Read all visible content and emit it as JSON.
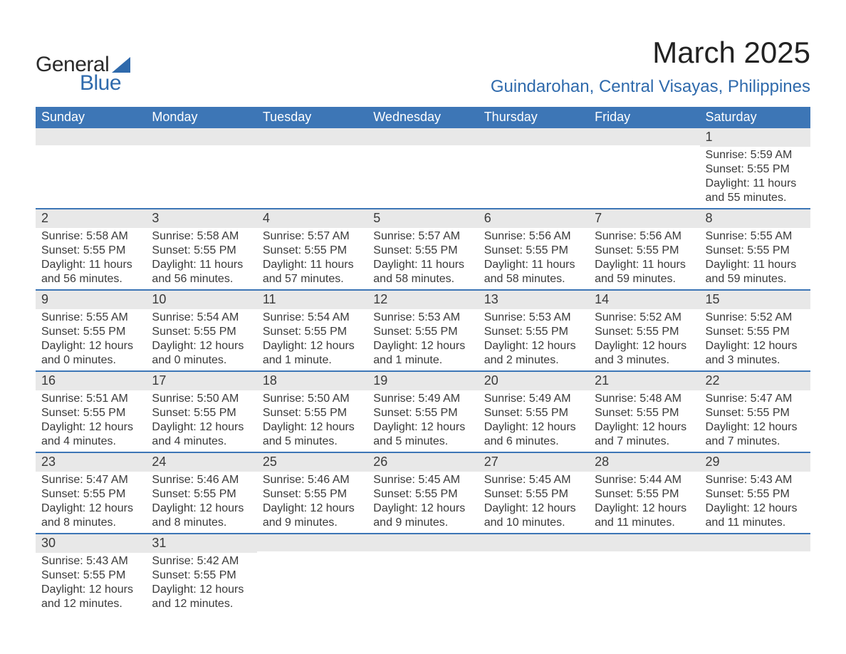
{
  "logo": {
    "word1": "General",
    "word2": "Blue"
  },
  "title": "March 2025",
  "location": "Guindarohan, Central Visayas, Philippines",
  "colors": {
    "header_bg": "#3d76b6",
    "header_text": "#ffffff",
    "daynum_bg": "#e8e8e8",
    "week_border": "#3d76b6",
    "logo_blue": "#2f6aac",
    "body_text": "#3a3a3a",
    "page_bg": "#ffffff"
  },
  "typography": {
    "title_fontsize_pt": 32,
    "location_fontsize_pt": 18,
    "header_fontsize_pt": 14,
    "daynum_fontsize_pt": 14,
    "body_fontsize_pt": 12,
    "font_family": "Arial"
  },
  "calendar": {
    "columns": [
      "Sunday",
      "Monday",
      "Tuesday",
      "Wednesday",
      "Thursday",
      "Friday",
      "Saturday"
    ],
    "weeks": [
      [
        null,
        null,
        null,
        null,
        null,
        null,
        {
          "n": "1",
          "sunrise": "Sunrise: 5:59 AM",
          "sunset": "Sunset: 5:55 PM",
          "daylight": "Daylight: 11 hours and 55 minutes."
        }
      ],
      [
        {
          "n": "2",
          "sunrise": "Sunrise: 5:58 AM",
          "sunset": "Sunset: 5:55 PM",
          "daylight": "Daylight: 11 hours and 56 minutes."
        },
        {
          "n": "3",
          "sunrise": "Sunrise: 5:58 AM",
          "sunset": "Sunset: 5:55 PM",
          "daylight": "Daylight: 11 hours and 56 minutes."
        },
        {
          "n": "4",
          "sunrise": "Sunrise: 5:57 AM",
          "sunset": "Sunset: 5:55 PM",
          "daylight": "Daylight: 11 hours and 57 minutes."
        },
        {
          "n": "5",
          "sunrise": "Sunrise: 5:57 AM",
          "sunset": "Sunset: 5:55 PM",
          "daylight": "Daylight: 11 hours and 58 minutes."
        },
        {
          "n": "6",
          "sunrise": "Sunrise: 5:56 AM",
          "sunset": "Sunset: 5:55 PM",
          "daylight": "Daylight: 11 hours and 58 minutes."
        },
        {
          "n": "7",
          "sunrise": "Sunrise: 5:56 AM",
          "sunset": "Sunset: 5:55 PM",
          "daylight": "Daylight: 11 hours and 59 minutes."
        },
        {
          "n": "8",
          "sunrise": "Sunrise: 5:55 AM",
          "sunset": "Sunset: 5:55 PM",
          "daylight": "Daylight: 11 hours and 59 minutes."
        }
      ],
      [
        {
          "n": "9",
          "sunrise": "Sunrise: 5:55 AM",
          "sunset": "Sunset: 5:55 PM",
          "daylight": "Daylight: 12 hours and 0 minutes."
        },
        {
          "n": "10",
          "sunrise": "Sunrise: 5:54 AM",
          "sunset": "Sunset: 5:55 PM",
          "daylight": "Daylight: 12 hours and 0 minutes."
        },
        {
          "n": "11",
          "sunrise": "Sunrise: 5:54 AM",
          "sunset": "Sunset: 5:55 PM",
          "daylight": "Daylight: 12 hours and 1 minute."
        },
        {
          "n": "12",
          "sunrise": "Sunrise: 5:53 AM",
          "sunset": "Sunset: 5:55 PM",
          "daylight": "Daylight: 12 hours and 1 minute."
        },
        {
          "n": "13",
          "sunrise": "Sunrise: 5:53 AM",
          "sunset": "Sunset: 5:55 PM",
          "daylight": "Daylight: 12 hours and 2 minutes."
        },
        {
          "n": "14",
          "sunrise": "Sunrise: 5:52 AM",
          "sunset": "Sunset: 5:55 PM",
          "daylight": "Daylight: 12 hours and 3 minutes."
        },
        {
          "n": "15",
          "sunrise": "Sunrise: 5:52 AM",
          "sunset": "Sunset: 5:55 PM",
          "daylight": "Daylight: 12 hours and 3 minutes."
        }
      ],
      [
        {
          "n": "16",
          "sunrise": "Sunrise: 5:51 AM",
          "sunset": "Sunset: 5:55 PM",
          "daylight": "Daylight: 12 hours and 4 minutes."
        },
        {
          "n": "17",
          "sunrise": "Sunrise: 5:50 AM",
          "sunset": "Sunset: 5:55 PM",
          "daylight": "Daylight: 12 hours and 4 minutes."
        },
        {
          "n": "18",
          "sunrise": "Sunrise: 5:50 AM",
          "sunset": "Sunset: 5:55 PM",
          "daylight": "Daylight: 12 hours and 5 minutes."
        },
        {
          "n": "19",
          "sunrise": "Sunrise: 5:49 AM",
          "sunset": "Sunset: 5:55 PM",
          "daylight": "Daylight: 12 hours and 5 minutes."
        },
        {
          "n": "20",
          "sunrise": "Sunrise: 5:49 AM",
          "sunset": "Sunset: 5:55 PM",
          "daylight": "Daylight: 12 hours and 6 minutes."
        },
        {
          "n": "21",
          "sunrise": "Sunrise: 5:48 AM",
          "sunset": "Sunset: 5:55 PM",
          "daylight": "Daylight: 12 hours and 7 minutes."
        },
        {
          "n": "22",
          "sunrise": "Sunrise: 5:47 AM",
          "sunset": "Sunset: 5:55 PM",
          "daylight": "Daylight: 12 hours and 7 minutes."
        }
      ],
      [
        {
          "n": "23",
          "sunrise": "Sunrise: 5:47 AM",
          "sunset": "Sunset: 5:55 PM",
          "daylight": "Daylight: 12 hours and 8 minutes."
        },
        {
          "n": "24",
          "sunrise": "Sunrise: 5:46 AM",
          "sunset": "Sunset: 5:55 PM",
          "daylight": "Daylight: 12 hours and 8 minutes."
        },
        {
          "n": "25",
          "sunrise": "Sunrise: 5:46 AM",
          "sunset": "Sunset: 5:55 PM",
          "daylight": "Daylight: 12 hours and 9 minutes."
        },
        {
          "n": "26",
          "sunrise": "Sunrise: 5:45 AM",
          "sunset": "Sunset: 5:55 PM",
          "daylight": "Daylight: 12 hours and 9 minutes."
        },
        {
          "n": "27",
          "sunrise": "Sunrise: 5:45 AM",
          "sunset": "Sunset: 5:55 PM",
          "daylight": "Daylight: 12 hours and 10 minutes."
        },
        {
          "n": "28",
          "sunrise": "Sunrise: 5:44 AM",
          "sunset": "Sunset: 5:55 PM",
          "daylight": "Daylight: 12 hours and 11 minutes."
        },
        {
          "n": "29",
          "sunrise": "Sunrise: 5:43 AM",
          "sunset": "Sunset: 5:55 PM",
          "daylight": "Daylight: 12 hours and 11 minutes."
        }
      ],
      [
        {
          "n": "30",
          "sunrise": "Sunrise: 5:43 AM",
          "sunset": "Sunset: 5:55 PM",
          "daylight": "Daylight: 12 hours and 12 minutes."
        },
        {
          "n": "31",
          "sunrise": "Sunrise: 5:42 AM",
          "sunset": "Sunset: 5:55 PM",
          "daylight": "Daylight: 12 hours and 12 minutes."
        },
        null,
        null,
        null,
        null,
        null
      ]
    ]
  }
}
